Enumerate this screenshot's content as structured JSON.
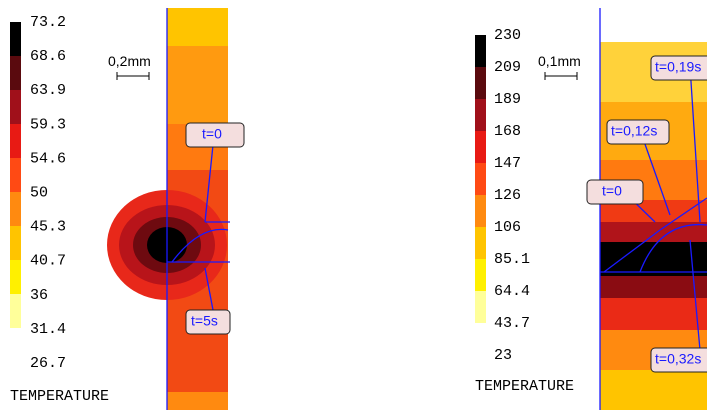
{
  "panels": [
    {
      "colorbar": {
        "labels": [
          "73.2",
          "68.6",
          "63.9",
          "59.3",
          "54.6",
          "50",
          "45.3",
          "40.7",
          "36",
          "31.4",
          "26.7"
        ],
        "title": "TEMPERATURE"
      },
      "scale_bar": "0,2mm",
      "annotations": [
        "t=0",
        "t=5s"
      ]
    },
    {
      "colorbar": {
        "labels": [
          "230",
          "209",
          "189",
          "168",
          "147",
          "126",
          "106",
          "85.1",
          "64.4",
          "43.7",
          "23"
        ],
        "title": "TEMPERATURE"
      },
      "scale_bar": "0,1mm",
      "annotations": [
        "t=0,19s",
        "t=0,12s",
        "t=0",
        "t=0,32s"
      ]
    }
  ]
}
